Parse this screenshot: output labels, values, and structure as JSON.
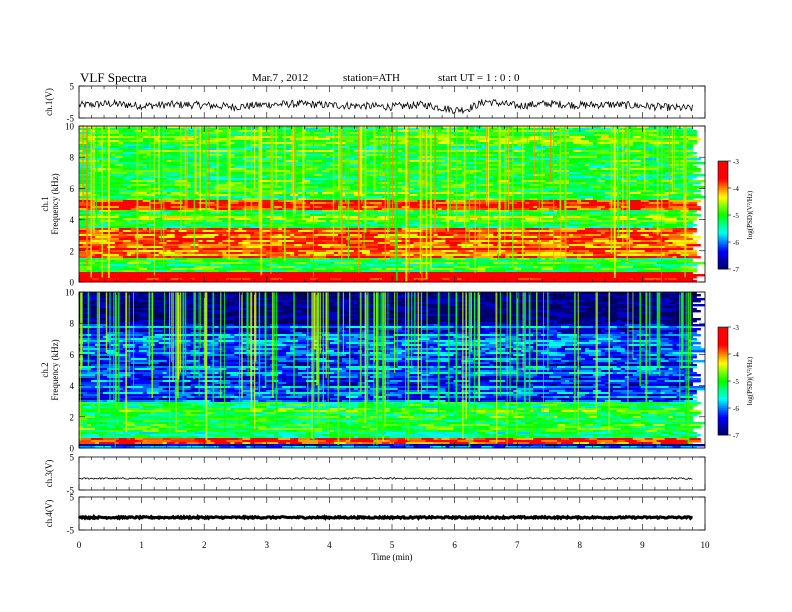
{
  "header": {
    "title": "VLF  Spectra",
    "date": "Mar.7  , 2012",
    "station": "station=ATH",
    "start": "start  UT  =   1 : 0 : 0"
  },
  "chart_data": [
    {
      "type": "line",
      "panel": "ch1-waveform",
      "ylabel": "ch.1(V)",
      "ylim": [
        -5,
        5
      ],
      "yticks": [
        "5",
        "-5"
      ],
      "xlim": [
        0,
        10
      ],
      "note_values": "signal fluctuates mostly between about -3 V and +1 V over the 0-9.8 min record",
      "x": [
        0,
        0.5,
        1,
        1.5,
        2,
        2.5,
        3,
        3.5,
        4,
        4.5,
        5,
        5.5,
        6,
        6.2,
        6.5,
        7,
        7.5,
        8,
        8.5,
        9,
        9.5,
        9.8
      ],
      "y": [
        -1.0,
        -0.5,
        -1.2,
        -0.8,
        -1.0,
        -1.5,
        -0.8,
        -0.6,
        -1.0,
        -1.2,
        -1.5,
        -0.8,
        -2.5,
        -2.2,
        0.2,
        -1.2,
        -0.5,
        -1.0,
        -0.8,
        -1.2,
        -1.8,
        -2.0
      ]
    },
    {
      "type": "heatmap",
      "panel": "ch1-spectrogram",
      "ylabel_top": "ch.1",
      "ylabel": "Frequency  (kHz)",
      "ylim": [
        0,
        10
      ],
      "yticks": [
        "0",
        "2",
        "4",
        "6",
        "8",
        "10"
      ],
      "xlim": [
        0,
        10
      ],
      "colorbar": {
        "label": "log(PSD)(V²/Hz)",
        "range": [
          -7,
          -3
        ],
        "ticks": [
          "-3",
          "-4",
          "-5",
          "-6",
          "-7"
        ]
      },
      "strong_bands_khz": [
        {
          "from": 4.6,
          "to": 5.2,
          "level": -3.6
        },
        {
          "from": 1.6,
          "to": 3.4,
          "level": -3.8
        },
        {
          "from": 0.0,
          "to": 0.6,
          "level": -3.3
        }
      ],
      "background_level": -5.0
    },
    {
      "type": "heatmap",
      "panel": "ch2-spectrogram",
      "ylabel_top": "ch.2",
      "ylabel": "Frequency  (kHz)",
      "ylim": [
        0,
        10
      ],
      "yticks": [
        "0",
        "2",
        "4",
        "6",
        "8",
        "10"
      ],
      "xlim": [
        0,
        10
      ],
      "colorbar": {
        "label": "log(PSD)(V²/Hz)",
        "range": [
          -7,
          -3
        ],
        "ticks": [
          "-3",
          "-4",
          "-5",
          "-6",
          "-7"
        ]
      },
      "strong_bands_khz": [
        {
          "from": 0.2,
          "to": 0.6,
          "level": -3.6
        },
        {
          "from": 0.6,
          "to": 3.0,
          "level": -5.1
        }
      ],
      "background_level": -6.2
    },
    {
      "type": "line",
      "panel": "ch3-waveform",
      "ylabel": "ch.3(V)",
      "ylim": [
        -5,
        5
      ],
      "yticks": [
        "5",
        "-5"
      ],
      "xlim": [
        0,
        10
      ],
      "x": [
        0,
        9.8
      ],
      "y": [
        -1.5,
        -1.5
      ]
    },
    {
      "type": "line",
      "panel": "ch4-waveform",
      "ylabel": "ch.4(V)",
      "ylim": [
        -5,
        5
      ],
      "yticks": [
        "5",
        "-5"
      ],
      "xlim": [
        0,
        10
      ],
      "x": [
        0,
        9.8
      ],
      "y": [
        -1.2,
        -1.2
      ]
    }
  ],
  "xaxis": {
    "label": "Time  (min)",
    "ticks": [
      "0",
      "1",
      "2",
      "3",
      "4",
      "5",
      "6",
      "7",
      "8",
      "9",
      "10"
    ]
  },
  "colors": {
    "colormap": [
      "#000060",
      "#0000ff",
      "#00ffff",
      "#00ff00",
      "#ffff00",
      "#ff0000",
      "#ff0000"
    ]
  }
}
